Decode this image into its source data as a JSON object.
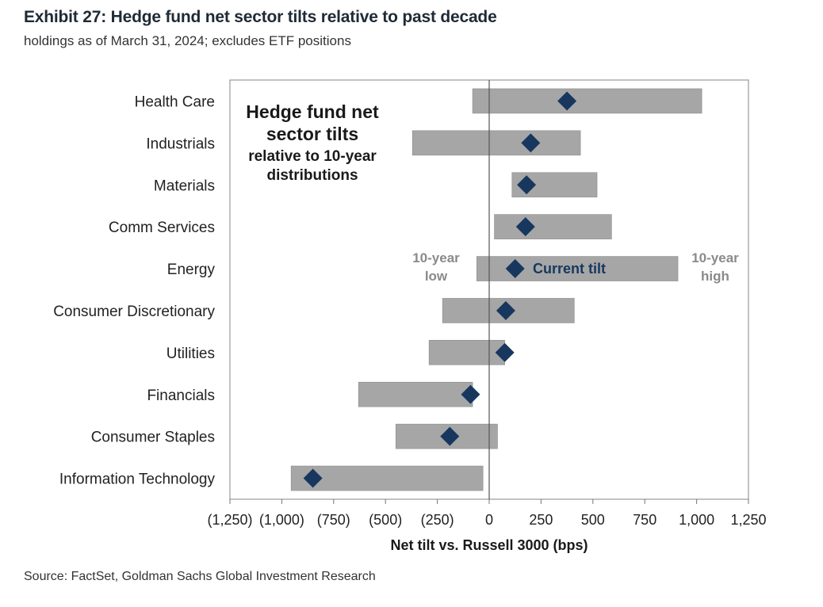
{
  "header": {
    "title": "Exhibit 27: Hedge fund net sector tilts relative to past decade",
    "subtitle": "holdings as of March 31, 2024; excludes ETF positions"
  },
  "footer": {
    "source": "Source: FactSet, Goldman Sachs Global Investment Research"
  },
  "colors": {
    "range_bar": "#a6a6a6",
    "current_marker": "#17375e",
    "annotation_gray": "#8a8a8a"
  },
  "chart_data": {
    "type": "range-bar-with-marker",
    "title": "Hedge fund net sector tilts relative to 10-year distributions",
    "title_lines": [
      "Hedge fund net",
      "sector tilts",
      "relative to 10-year",
      "distributions"
    ],
    "xlabel": "Net tilt vs. Russell 3000 (bps)",
    "ylabel": "",
    "xlim": [
      -1250,
      1250
    ],
    "xticks": [
      -1250,
      -1000,
      -750,
      -500,
      -250,
      0,
      250,
      500,
      750,
      1000,
      1250
    ],
    "xtick_labels": [
      "(1,250)",
      "(1,000)",
      "(750)",
      "(500)",
      "(250)",
      "0",
      "250",
      "500",
      "750",
      "1,000",
      "1,250"
    ],
    "grid": false,
    "categories": [
      "Health Care",
      "Industrials",
      "Materials",
      "Comm Services",
      "Energy",
      "Consumer Discretionary",
      "Utilities",
      "Financials",
      "Consumer Staples",
      "Information Technology"
    ],
    "series": [
      {
        "name": "10-year low",
        "values": [
          -80,
          -370,
          110,
          25,
          -60,
          -225,
          -290,
          -630,
          -450,
          -955
        ]
      },
      {
        "name": "10-year high",
        "values": [
          1025,
          440,
          520,
          590,
          910,
          410,
          75,
          -80,
          40,
          -30
        ]
      },
      {
        "name": "Current tilt",
        "values": [
          375,
          200,
          180,
          175,
          125,
          80,
          75,
          -90,
          -190,
          -850
        ]
      }
    ],
    "annotations": {
      "low_label_lines": [
        "10-year",
        "low"
      ],
      "current_label": "Current tilt",
      "high_label_lines": [
        "10-year",
        "high"
      ]
    }
  }
}
